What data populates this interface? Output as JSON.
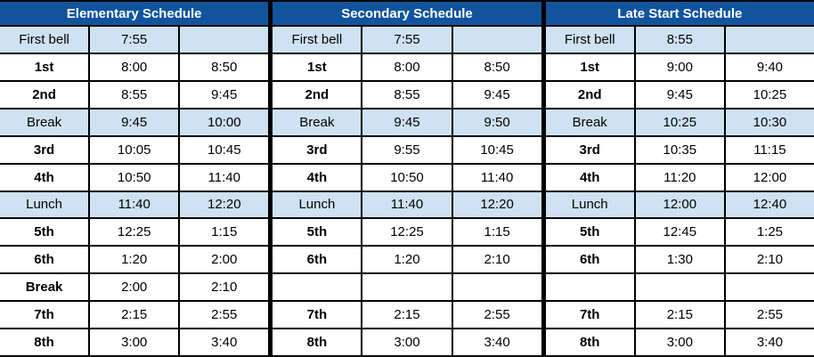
{
  "colors": {
    "header_bg": "#11549d",
    "highlight_row_bg": "#cfe2f3",
    "border": "#000000",
    "header_text": "#ffffff",
    "cell_text": "#000000"
  },
  "tables": [
    {
      "title": "Elementary Schedule",
      "rows": [
        {
          "label": "First bell",
          "start": "7:55",
          "end": "",
          "style": "highlight"
        },
        {
          "label": "1st",
          "start": "8:00",
          "end": "8:50",
          "style": "period"
        },
        {
          "label": "2nd",
          "start": "8:55",
          "end": "9:45",
          "style": "period"
        },
        {
          "label": "Break",
          "start": "9:45",
          "end": "10:00",
          "style": "highlight"
        },
        {
          "label": "3rd",
          "start": "10:05",
          "end": "10:45",
          "style": "period"
        },
        {
          "label": "4th",
          "start": "10:50",
          "end": "11:40",
          "style": "period"
        },
        {
          "label": "Lunch",
          "start": "11:40",
          "end": "12:20",
          "style": "highlight"
        },
        {
          "label": "5th",
          "start": "12:25",
          "end": "1:15",
          "style": "period"
        },
        {
          "label": "6th",
          "start": "1:20",
          "end": "2:00",
          "style": "period"
        },
        {
          "label": "Break",
          "start": "2:00",
          "end": "2:10",
          "style": "period"
        },
        {
          "label": "7th",
          "start": "2:15",
          "end": "2:55",
          "style": "period"
        },
        {
          "label": "8th",
          "start": "3:00",
          "end": "3:40",
          "style": "period"
        }
      ]
    },
    {
      "title": "Secondary Schedule",
      "rows": [
        {
          "label": "First bell",
          "start": "7:55",
          "end": "",
          "style": "highlight"
        },
        {
          "label": "1st",
          "start": "8:00",
          "end": "8:50",
          "style": "period"
        },
        {
          "label": "2nd",
          "start": "8:55",
          "end": "9:45",
          "style": "period"
        },
        {
          "label": "Break",
          "start": "9:45",
          "end": "9:50",
          "style": "highlight"
        },
        {
          "label": "3rd",
          "start": "9:55",
          "end": "10:45",
          "style": "period"
        },
        {
          "label": "4th",
          "start": "10:50",
          "end": "11:40",
          "style": "period"
        },
        {
          "label": "Lunch",
          "start": "11:40",
          "end": "12:20",
          "style": "highlight"
        },
        {
          "label": "5th",
          "start": "12:25",
          "end": "1:15",
          "style": "period"
        },
        {
          "label": "6th",
          "start": "1:20",
          "end": "2:10",
          "style": "period"
        },
        {
          "label": "",
          "start": "",
          "end": "",
          "style": "empty"
        },
        {
          "label": "7th",
          "start": "2:15",
          "end": "2:55",
          "style": "period"
        },
        {
          "label": "8th",
          "start": "3:00",
          "end": "3:40",
          "style": "period"
        }
      ]
    },
    {
      "title": "Late Start Schedule",
      "rows": [
        {
          "label": "First bell",
          "start": "8:55",
          "end": "",
          "style": "highlight"
        },
        {
          "label": "1st",
          "start": "9:00",
          "end": "9:40",
          "style": "period"
        },
        {
          "label": "2nd",
          "start": "9:45",
          "end": "10:25",
          "style": "period"
        },
        {
          "label": "Break",
          "start": "10:25",
          "end": "10:30",
          "style": "highlight"
        },
        {
          "label": "3rd",
          "start": "10:35",
          "end": "11:15",
          "style": "period"
        },
        {
          "label": "4th",
          "start": "11:20",
          "end": "12:00",
          "style": "period"
        },
        {
          "label": "Lunch",
          "start": "12:00",
          "end": "12:40",
          "style": "highlight"
        },
        {
          "label": "5th",
          "start": "12:45",
          "end": "1:25",
          "style": "period"
        },
        {
          "label": "6th",
          "start": "1:30",
          "end": "2:10",
          "style": "period"
        },
        {
          "label": "",
          "start": "",
          "end": "",
          "style": "empty"
        },
        {
          "label": "7th",
          "start": "2:15",
          "end": "2:55",
          "style": "period"
        },
        {
          "label": "8th",
          "start": "3:00",
          "end": "3:40",
          "style": "period"
        }
      ]
    }
  ]
}
